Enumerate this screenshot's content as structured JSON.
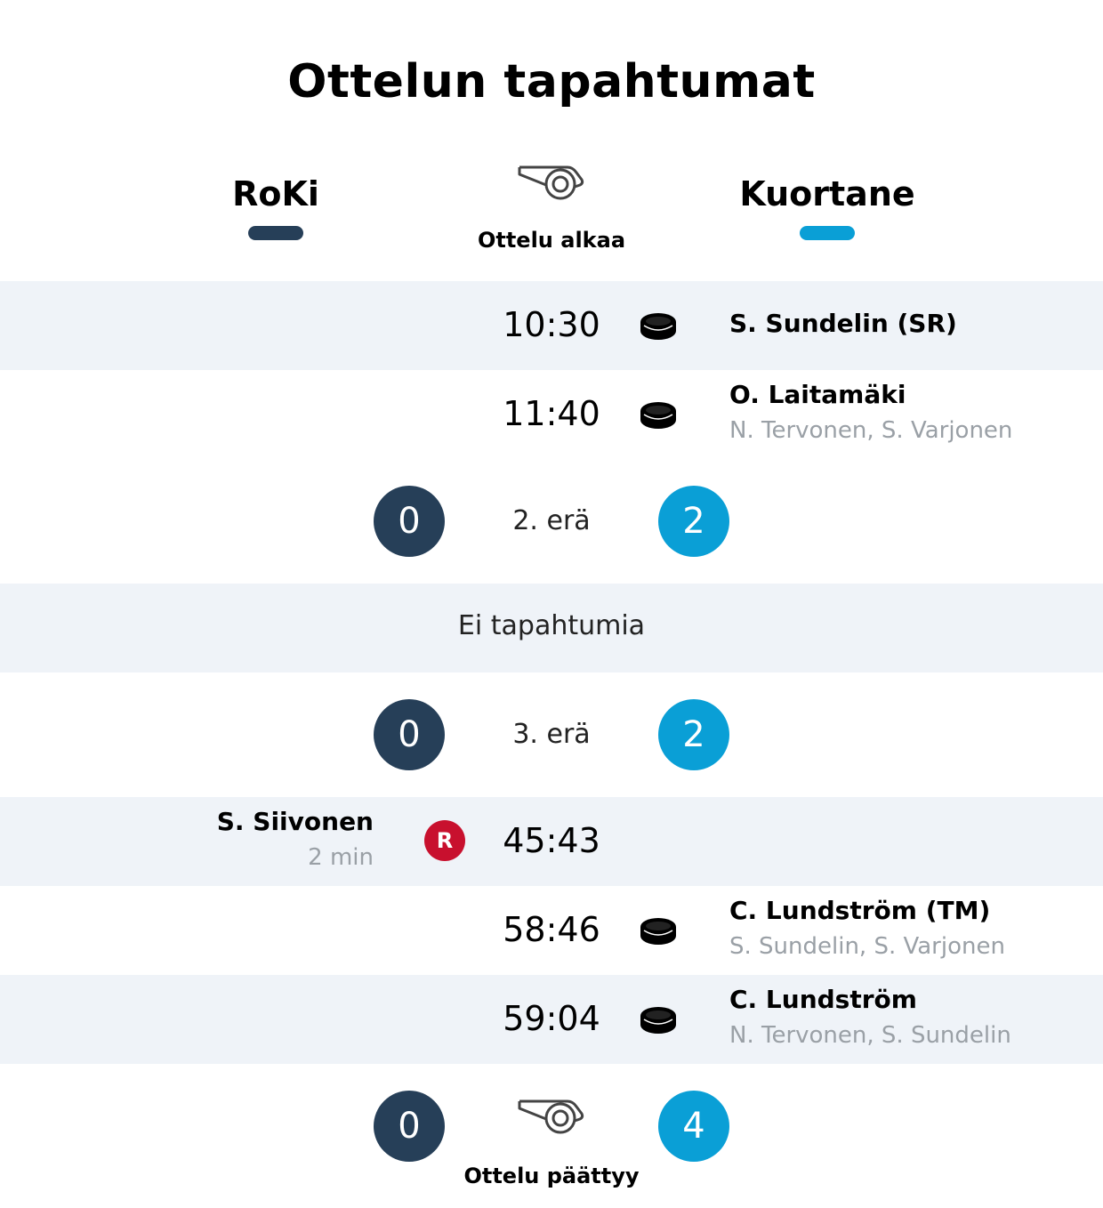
{
  "title": "Ottelun tapahtumat",
  "colors": {
    "home_team": "#263f58",
    "away_team": "#0a9fd6",
    "penalty": "#c8102e",
    "band_bg": "#eff3f8"
  },
  "teams": {
    "home": {
      "name": "RoKi"
    },
    "away": {
      "name": "Kuortane"
    }
  },
  "match_start": {
    "icon": "whistle-icon",
    "label": "Ottelu alkaa"
  },
  "period1_events": [
    {
      "time": "10:30",
      "type": "goal",
      "icon": "puck-icon",
      "team": "away",
      "scorer": "S. Sundelin (SR)",
      "assists": ""
    },
    {
      "time": "11:40",
      "type": "goal",
      "icon": "puck-icon",
      "team": "away",
      "scorer": "O. Laitamäki",
      "assists": "N. Tervonen, S. Varjonen"
    }
  ],
  "period2_header": {
    "label": "2. erä",
    "home_score": "0",
    "away_score": "2"
  },
  "period2_events": {
    "empty_label": "Ei tapahtumia"
  },
  "period3_header": {
    "label": "3. erä",
    "home_score": "0",
    "away_score": "2"
  },
  "period3_events": [
    {
      "time": "45:43",
      "type": "penalty",
      "icon": "penalty-badge",
      "badge_letter": "R",
      "team": "home",
      "player": "S. Siivonen",
      "duration": "2 min"
    },
    {
      "time": "58:46",
      "type": "goal",
      "icon": "puck-icon",
      "team": "away",
      "scorer": "C. Lundström (TM)",
      "assists": "S. Sundelin, S. Varjonen"
    },
    {
      "time": "59:04",
      "type": "goal",
      "icon": "puck-icon",
      "team": "away",
      "scorer": "C. Lundström",
      "assists": "N. Tervonen, S. Sundelin"
    }
  ],
  "match_end": {
    "icon": "whistle-icon",
    "label": "Ottelu päättyy",
    "home_score": "0",
    "away_score": "4"
  }
}
